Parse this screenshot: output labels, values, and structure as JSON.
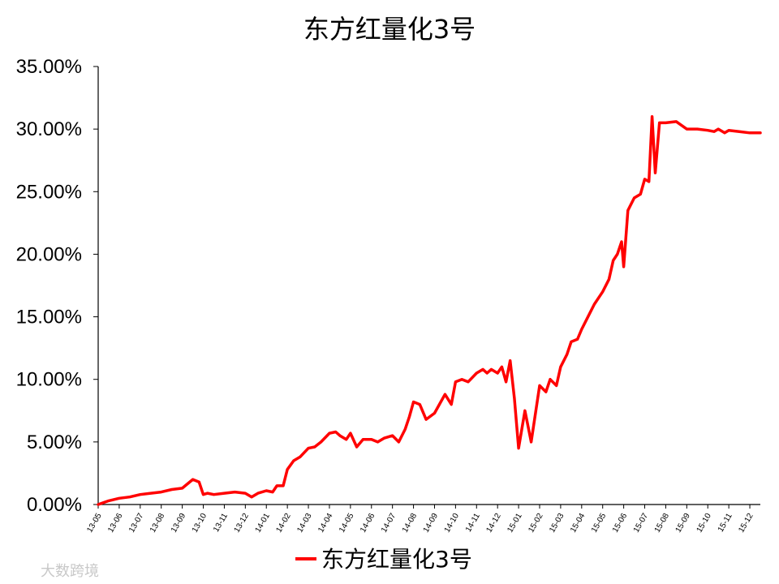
{
  "chart_data": {
    "type": "line",
    "title": "东方红量化3号",
    "ylim": [
      0,
      35
    ],
    "y_tick_labels": [
      "0.00%",
      "5.00%",
      "10.00%",
      "15.00%",
      "20.00%",
      "25.00%",
      "30.00%",
      "35.00%"
    ],
    "x_tick_labels": [
      "13-05",
      "13-06",
      "13-07",
      "13-08",
      "13-09",
      "13-10",
      "13-11",
      "13-12",
      "14-01",
      "14-02",
      "14-03",
      "14-04",
      "14-05",
      "14-06",
      "14-07",
      "14-08",
      "14-09",
      "14-10",
      "14-11",
      "14-12",
      "15-01",
      "15-02",
      "15-03",
      "15-04",
      "15-05",
      "15-06",
      "15-07",
      "15-08",
      "15-09",
      "15-10",
      "15-11",
      "15-12"
    ],
    "grid": false,
    "legend_position": "bottom",
    "series": [
      {
        "name": "东方红量化3号",
        "color": "#ff0000",
        "x": [
          0,
          0.5,
          1,
          1.5,
          2,
          2.5,
          3,
          3.5,
          4,
          4.5,
          4.8,
          5,
          5.2,
          5.5,
          6,
          6.5,
          7,
          7.3,
          7.6,
          8,
          8.3,
          8.5,
          8.8,
          9,
          9.3,
          9.6,
          10,
          10.3,
          10.6,
          11,
          11.3,
          11.5,
          11.8,
          12,
          12.3,
          12.6,
          13,
          13.3,
          13.6,
          14,
          14.3,
          14.6,
          14.8,
          15,
          15.3,
          15.6,
          16,
          16.3,
          16.5,
          16.8,
          17,
          17.3,
          17.6,
          18,
          18.3,
          18.5,
          18.7,
          19,
          19.2,
          19.4,
          19.6,
          19.8,
          20,
          20.3,
          20.6,
          21,
          21.3,
          21.5,
          21.8,
          22,
          22.3,
          22.5,
          22.8,
          23,
          23.3,
          23.6,
          24,
          24.3,
          24.5,
          24.7,
          24.9,
          25,
          25.2,
          25.5,
          25.8,
          26,
          26.2,
          26.35,
          26.5,
          26.7,
          27,
          27.5,
          28,
          28.5,
          29,
          29.3,
          29.5,
          29.8,
          30,
          30.5,
          31,
          31.5
        ],
        "values": [
          0,
          0.3,
          0.5,
          0.6,
          0.8,
          0.9,
          1.0,
          1.2,
          1.3,
          2.0,
          1.8,
          0.8,
          0.9,
          0.8,
          0.9,
          1.0,
          0.9,
          0.6,
          0.9,
          1.1,
          1.0,
          1.5,
          1.5,
          2.8,
          3.5,
          3.8,
          4.5,
          4.6,
          5.0,
          5.7,
          5.8,
          5.5,
          5.2,
          5.7,
          4.6,
          5.2,
          5.2,
          5.0,
          5.3,
          5.5,
          5.0,
          6.0,
          7.0,
          8.2,
          8.0,
          6.8,
          7.3,
          8.2,
          8.8,
          8.0,
          9.8,
          10.0,
          9.8,
          10.5,
          10.8,
          10.5,
          10.8,
          10.5,
          11.0,
          9.8,
          11.5,
          8.5,
          4.5,
          7.5,
          5.0,
          9.5,
          9.0,
          10.0,
          9.5,
          11.0,
          12.0,
          13.0,
          13.2,
          14.0,
          15.0,
          16.0,
          17.0,
          18.0,
          19.5,
          20.0,
          21.0,
          19.0,
          23.5,
          24.5,
          24.8,
          26.0,
          25.8,
          31.0,
          26.5,
          30.5,
          30.5,
          30.6,
          30.0,
          30.0,
          29.9,
          29.8,
          30.0,
          29.7,
          29.9,
          29.8,
          29.7,
          29.7
        ]
      }
    ]
  },
  "legend": {
    "label": "东方红量化3号"
  },
  "watermark": {
    "text": "大数跨境"
  }
}
